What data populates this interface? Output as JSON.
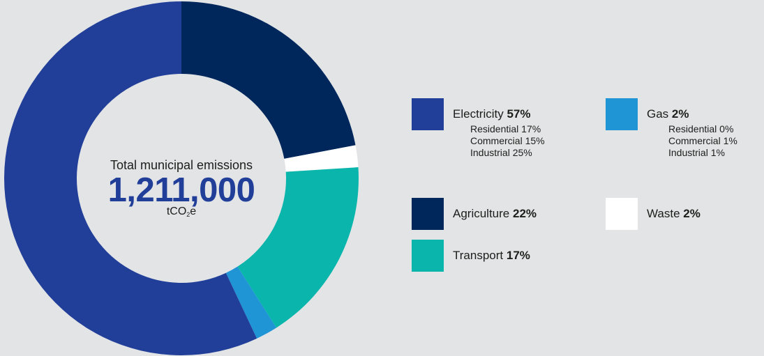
{
  "center": {
    "title": "Total municipal emissions",
    "value": "1,211,000",
    "unit_main": "tCO",
    "unit_sub": "2",
    "unit_tail": "e"
  },
  "legend": {
    "electricity": {
      "name": "Electricity",
      "pct": "57%",
      "sub": [
        "Residential 17%",
        "Commercial 15%",
        "Industrial 25%"
      ]
    },
    "gas": {
      "name": "Gas",
      "pct": "2%",
      "sub": [
        "Residential 0%",
        "Commercial 1%",
        "Industrial 1%"
      ]
    },
    "agriculture": {
      "name": "Agriculture",
      "pct": "22%"
    },
    "waste": {
      "name": "Waste",
      "pct": "2%"
    },
    "transport": {
      "name": "Transport",
      "pct": "17%"
    }
  },
  "chart_data": {
    "type": "pie",
    "donut": true,
    "title": "Total municipal emissions",
    "slices": [
      {
        "label": "Agriculture",
        "value": 22,
        "color": "#00275c"
      },
      {
        "label": "Waste",
        "value": 2,
        "color": "#ffffff"
      },
      {
        "label": "Transport",
        "value": 17,
        "color": "#0ab5ac"
      },
      {
        "label": "Gas",
        "value": 2,
        "color": "#1f95d6"
      },
      {
        "label": "Electricity",
        "value": 57,
        "color": "#213f99"
      }
    ],
    "legend_position": "right"
  }
}
